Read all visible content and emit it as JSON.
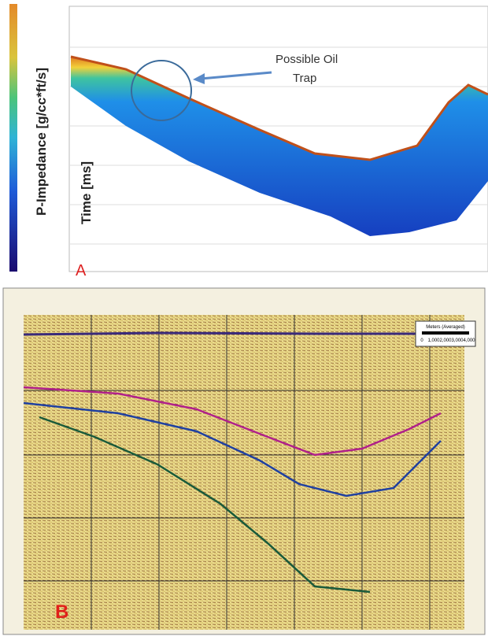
{
  "panel_a": {
    "label": "A",
    "legend_title": "P-Impedance [g/cc*ft/s]",
    "axis_title": "Time [ms]",
    "annotation": [
      "Possible Oil",
      "Trap"
    ]
  },
  "panel_b": {
    "label": "B",
    "scale_bar": {
      "title": "Meters (Averaged)",
      "ticks": [
        "0",
        "1,000",
        "2,000",
        "3,000",
        "4,000"
      ]
    }
  }
}
